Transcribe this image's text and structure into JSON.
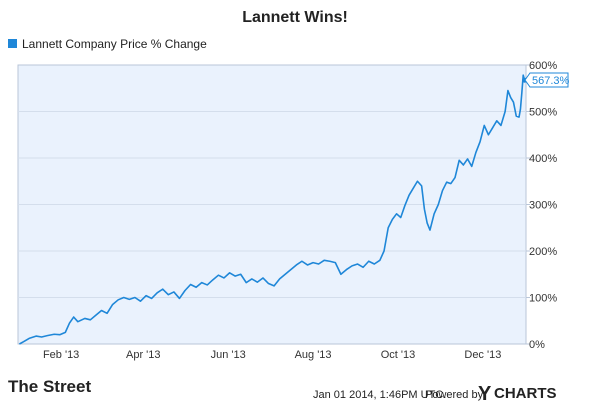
{
  "colors": {
    "line": "#1f87d8",
    "plot_background": "#eaf2fd",
    "plot_border": "#b9c6d8",
    "grid": "#d4deec",
    "text": "#222222",
    "ycharts_accent": "#1f87d8"
  },
  "chart_data": {
    "type": "line",
    "title": "Lannett Wins!",
    "ylabel": "",
    "xlabel": "",
    "y_unit": "%",
    "ylim": [
      0,
      600
    ],
    "y_ticks": [
      "0%",
      "100%",
      "200%",
      "300%",
      "400%",
      "500%",
      "600%"
    ],
    "y_tick_values": [
      0,
      100,
      200,
      300,
      400,
      500,
      600
    ],
    "x_ticks": [
      "Feb '13",
      "Apr '13",
      "Jun '13",
      "Aug '13",
      "Oct '13",
      "Dec '13"
    ],
    "x_tick_dates": [
      "2013-02-01",
      "2013-04-01",
      "2013-06-01",
      "2013-08-01",
      "2013-10-01",
      "2013-12-01"
    ],
    "xlim": [
      "2013-01-01",
      "2014-01-01"
    ],
    "grid": true,
    "legend_position": "top-left",
    "series": [
      {
        "name": "Lannett Company Price % Change",
        "last_value_label": "567.3%",
        "points": [
          [
            "2013-01-02",
            0
          ],
          [
            "2013-01-05",
            5
          ],
          [
            "2013-01-09",
            12
          ],
          [
            "2013-01-14",
            17
          ],
          [
            "2013-01-18",
            15
          ],
          [
            "2013-01-22",
            18
          ],
          [
            "2013-01-27",
            21
          ],
          [
            "2013-01-31",
            20
          ],
          [
            "2013-02-04",
            25
          ],
          [
            "2013-02-07",
            45
          ],
          [
            "2013-02-10",
            58
          ],
          [
            "2013-02-13",
            48
          ],
          [
            "2013-02-18",
            55
          ],
          [
            "2013-02-22",
            52
          ],
          [
            "2013-02-26",
            62
          ],
          [
            "2013-03-02",
            72
          ],
          [
            "2013-03-06",
            66
          ],
          [
            "2013-03-10",
            85
          ],
          [
            "2013-03-14",
            95
          ],
          [
            "2013-03-18",
            100
          ],
          [
            "2013-03-22",
            96
          ],
          [
            "2013-03-26",
            100
          ],
          [
            "2013-03-30",
            92
          ],
          [
            "2013-04-03",
            104
          ],
          [
            "2013-04-07",
            98
          ],
          [
            "2013-04-11",
            110
          ],
          [
            "2013-04-15",
            118
          ],
          [
            "2013-04-19",
            106
          ],
          [
            "2013-04-23",
            112
          ],
          [
            "2013-04-27",
            98
          ],
          [
            "2013-05-01",
            115
          ],
          [
            "2013-05-05",
            128
          ],
          [
            "2013-05-09",
            122
          ],
          [
            "2013-05-13",
            132
          ],
          [
            "2013-05-17",
            127
          ],
          [
            "2013-05-21",
            138
          ],
          [
            "2013-05-25",
            148
          ],
          [
            "2013-05-29",
            142
          ],
          [
            "2013-06-02",
            153
          ],
          [
            "2013-06-06",
            146
          ],
          [
            "2013-06-10",
            150
          ],
          [
            "2013-06-14",
            132
          ],
          [
            "2013-06-18",
            140
          ],
          [
            "2013-06-22",
            133
          ],
          [
            "2013-06-26",
            142
          ],
          [
            "2013-06-30",
            130
          ],
          [
            "2013-07-04",
            125
          ],
          [
            "2013-07-08",
            140
          ],
          [
            "2013-07-12",
            150
          ],
          [
            "2013-07-16",
            160
          ],
          [
            "2013-07-20",
            170
          ],
          [
            "2013-07-24",
            178
          ],
          [
            "2013-07-28",
            170
          ],
          [
            "2013-08-01",
            175
          ],
          [
            "2013-08-05",
            172
          ],
          [
            "2013-08-09",
            180
          ],
          [
            "2013-08-13",
            178
          ],
          [
            "2013-08-17",
            175
          ],
          [
            "2013-08-21",
            150
          ],
          [
            "2013-08-25",
            160
          ],
          [
            "2013-08-29",
            168
          ],
          [
            "2013-09-02",
            172
          ],
          [
            "2013-09-06",
            165
          ],
          [
            "2013-09-10",
            178
          ],
          [
            "2013-09-14",
            172
          ],
          [
            "2013-09-18",
            180
          ],
          [
            "2013-09-21",
            200
          ],
          [
            "2013-09-24",
            250
          ],
          [
            "2013-09-27",
            268
          ],
          [
            "2013-09-30",
            280
          ],
          [
            "2013-10-03",
            272
          ],
          [
            "2013-10-06",
            298
          ],
          [
            "2013-10-09",
            320
          ],
          [
            "2013-10-12",
            335
          ],
          [
            "2013-10-15",
            350
          ],
          [
            "2013-10-18",
            340
          ],
          [
            "2013-10-20",
            290
          ],
          [
            "2013-10-22",
            260
          ],
          [
            "2013-10-24",
            245
          ],
          [
            "2013-10-27",
            280
          ],
          [
            "2013-10-30",
            300
          ],
          [
            "2013-11-02",
            330
          ],
          [
            "2013-11-05",
            348
          ],
          [
            "2013-11-08",
            345
          ],
          [
            "2013-11-11",
            358
          ],
          [
            "2013-11-14",
            395
          ],
          [
            "2013-11-17",
            385
          ],
          [
            "2013-11-20",
            398
          ],
          [
            "2013-11-23",
            382
          ],
          [
            "2013-11-26",
            412
          ],
          [
            "2013-11-29",
            435
          ],
          [
            "2013-12-02",
            470
          ],
          [
            "2013-12-05",
            450
          ],
          [
            "2013-12-08",
            465
          ],
          [
            "2013-12-11",
            480
          ],
          [
            "2013-12-14",
            470
          ],
          [
            "2013-12-17",
            500
          ],
          [
            "2013-12-19",
            545
          ],
          [
            "2013-12-21",
            530
          ],
          [
            "2013-12-23",
            520
          ],
          [
            "2013-12-25",
            490
          ],
          [
            "2013-12-27",
            488
          ],
          [
            "2013-12-28",
            505
          ],
          [
            "2013-12-29",
            540
          ],
          [
            "2013-12-30",
            578
          ],
          [
            "2013-12-31",
            567.3
          ]
        ]
      }
    ]
  },
  "footer": {
    "source_logo": "The Street",
    "timestamp": "Jan 01 2014, 1:46PM UTC.",
    "powered_by": "Powered by",
    "brand_y": "Y",
    "brand_rest": "CHARTS"
  }
}
